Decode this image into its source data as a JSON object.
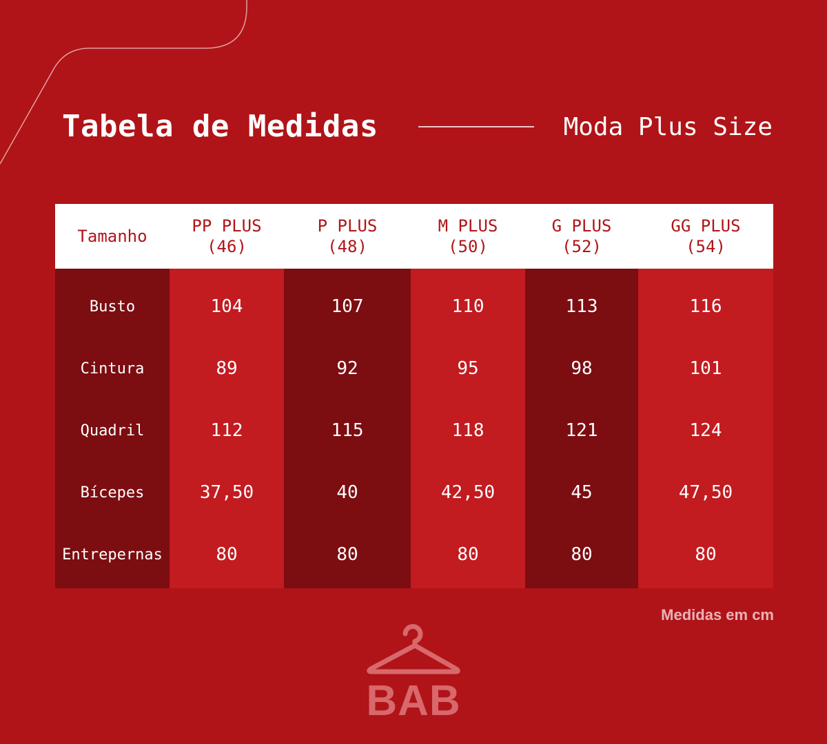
{
  "header": {
    "title": "Tabela de Medidas",
    "subtitle": "Moda Plus Size"
  },
  "table": {
    "corner_label": "Tamanho",
    "columns": [
      "PP PLUS\n(46)",
      "P PLUS\n(48)",
      "M PLUS\n(50)",
      "G PLUS\n(52)",
      "GG PLUS\n(54)"
    ],
    "row_labels": [
      "Busto",
      "Cintura",
      "Quadril",
      "Bícepes",
      "Entrepernas"
    ],
    "values": [
      [
        "104",
        "89",
        "112",
        "37,50",
        "80"
      ],
      [
        "107",
        "92",
        "115",
        "40",
        "80"
      ],
      [
        "110",
        "95",
        "118",
        "42,50",
        "80"
      ],
      [
        "113",
        "98",
        "121",
        "45",
        "80"
      ],
      [
        "116",
        "101",
        "124",
        "47,50",
        "80"
      ]
    ]
  },
  "footer": {
    "note": "Medidas em cm",
    "logo_text": "BAB",
    "logo_icon": "hanger-icon"
  },
  "colors": {
    "background": "#b01418",
    "dark_column": "#7c0d11",
    "light_column": "#c21b20",
    "header_text": "#b01418",
    "logo": "#d8686b"
  }
}
